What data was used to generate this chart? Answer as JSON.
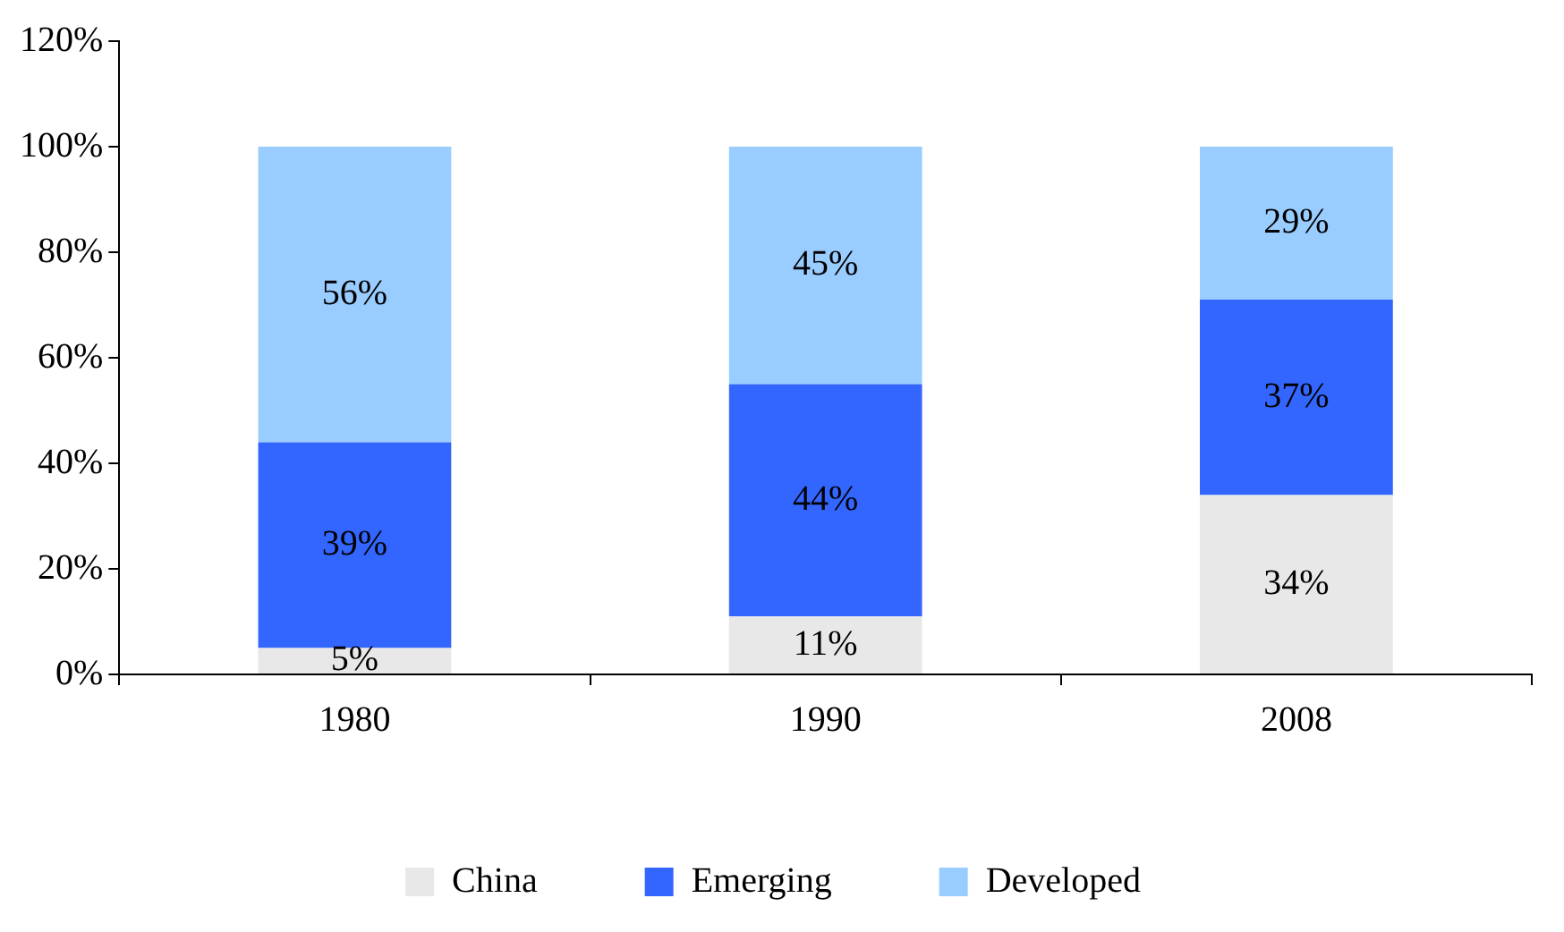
{
  "chart_data": {
    "type": "bar",
    "stacked": true,
    "legend": "bottom",
    "categories": [
      "1980",
      "1990",
      "2008"
    ],
    "series": [
      {
        "name": "China",
        "color": "#e8e8e8",
        "values": [
          5,
          11,
          34
        ],
        "value_labels": [
          "5%",
          "11%",
          "34%"
        ]
      },
      {
        "name": "Emerging",
        "color": "#3366ff",
        "values": [
          39,
          44,
          37
        ],
        "value_labels": [
          "39%",
          "44%",
          "37%"
        ]
      },
      {
        "name": "Developed",
        "color": "#99ccff",
        "values": [
          56,
          45,
          29
        ],
        "value_labels": [
          "56%",
          "45%",
          "29%"
        ]
      }
    ],
    "ylim": [
      0,
      120
    ],
    "yticks": [
      {
        "value": 0,
        "label": "0%"
      },
      {
        "value": 20,
        "label": "20%"
      },
      {
        "value": 40,
        "label": "40%"
      },
      {
        "value": 60,
        "label": "60%"
      },
      {
        "value": 80,
        "label": "80%"
      },
      {
        "value": 100,
        "label": "100%"
      },
      {
        "value": 120,
        "label": "120%"
      }
    ]
  }
}
